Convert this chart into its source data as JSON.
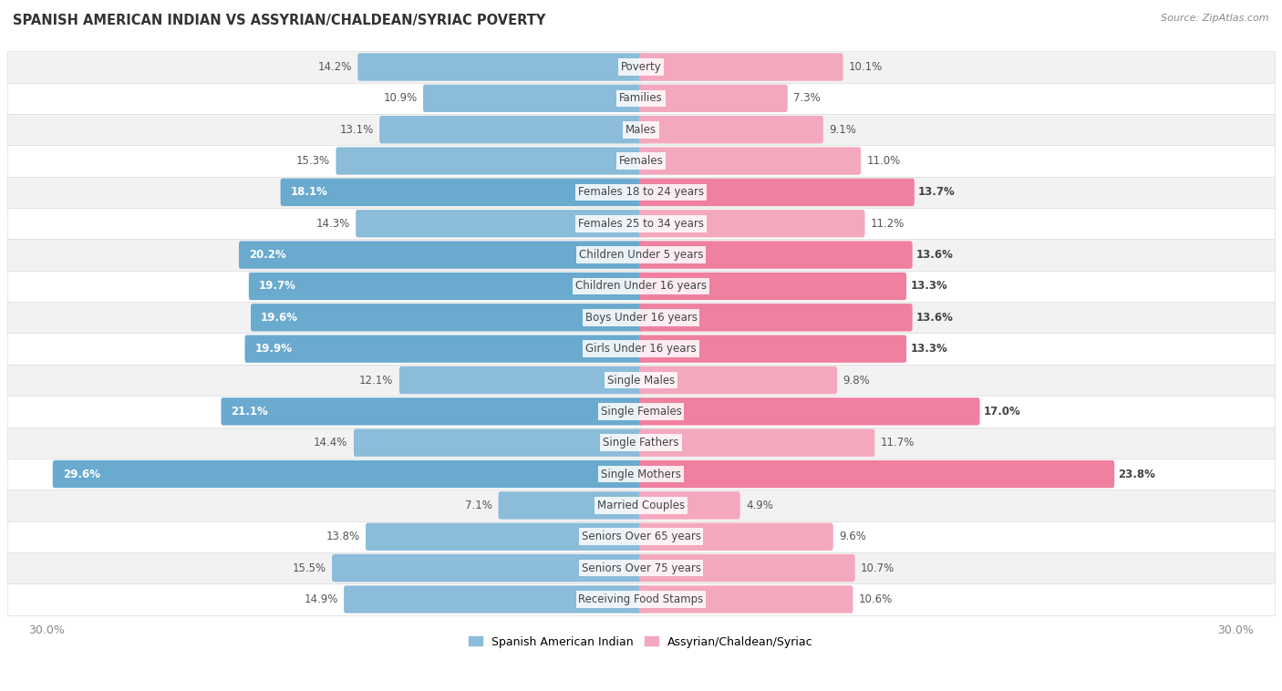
{
  "title": "SPANISH AMERICAN INDIAN VS ASSYRIAN/CHALDEAN/SYRIAC POVERTY",
  "source": "Source: ZipAtlas.com",
  "categories": [
    "Poverty",
    "Families",
    "Males",
    "Females",
    "Females 18 to 24 years",
    "Females 25 to 34 years",
    "Children Under 5 years",
    "Children Under 16 years",
    "Boys Under 16 years",
    "Girls Under 16 years",
    "Single Males",
    "Single Females",
    "Single Fathers",
    "Single Mothers",
    "Married Couples",
    "Seniors Over 65 years",
    "Seniors Over 75 years",
    "Receiving Food Stamps"
  ],
  "left_values": [
    14.2,
    10.9,
    13.1,
    15.3,
    18.1,
    14.3,
    20.2,
    19.7,
    19.6,
    19.9,
    12.1,
    21.1,
    14.4,
    29.6,
    7.1,
    13.8,
    15.5,
    14.9
  ],
  "right_values": [
    10.1,
    7.3,
    9.1,
    11.0,
    13.7,
    11.2,
    13.6,
    13.3,
    13.6,
    13.3,
    9.8,
    17.0,
    11.7,
    23.8,
    4.9,
    9.6,
    10.7,
    10.6
  ],
  "left_color": "#8BBCDA",
  "right_color": "#F4A8BE",
  "left_color_highlight": "#6AAACF",
  "right_color_highlight": "#F080A0",
  "highlight_rows": [
    4,
    6,
    7,
    8,
    9,
    11,
    13
  ],
  "left_label": "Spanish American Indian",
  "right_label": "Assyrian/Chaldean/Syriac",
  "axis_max": 30.0,
  "row_bg_light": "#f5f5f5",
  "row_bg_dark": "#e8e8e8",
  "bar_height": 0.68,
  "xlim": 30.0,
  "title_fontsize": 10.5,
  "source_fontsize": 8,
  "label_fontsize": 8.5,
  "cat_fontsize": 8.5
}
